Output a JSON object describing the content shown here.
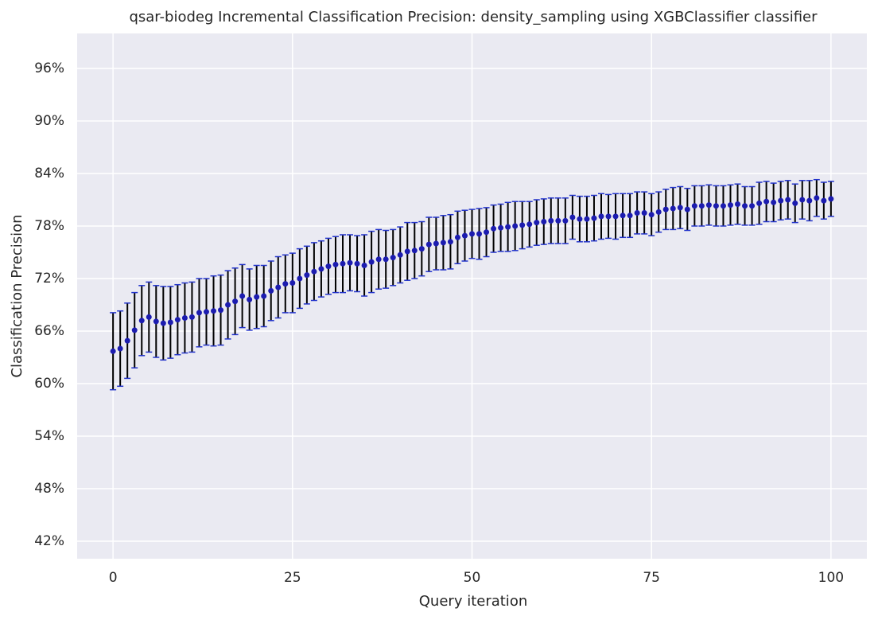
{
  "chart_data": {
    "type": "errorbar",
    "title": "qsar-biodeg Incremental Classification Precision: density_sampling using XGBClassifier classifier",
    "x_label": "Query iteration",
    "y_label": "Classification Precision",
    "x": [
      0,
      1,
      2,
      3,
      4,
      5,
      6,
      7,
      8,
      9,
      10,
      11,
      12,
      13,
      14,
      15,
      16,
      17,
      18,
      19,
      20,
      21,
      22,
      23,
      24,
      25,
      26,
      27,
      28,
      29,
      30,
      31,
      32,
      33,
      34,
      35,
      36,
      37,
      38,
      39,
      40,
      41,
      42,
      43,
      44,
      45,
      46,
      47,
      48,
      49,
      50,
      51,
      52,
      53,
      54,
      55,
      56,
      57,
      58,
      59,
      60,
      61,
      62,
      63,
      64,
      65,
      66,
      67,
      68,
      69,
      70,
      71,
      72,
      73,
      74,
      75,
      76,
      77,
      78,
      79,
      80,
      81,
      82,
      83,
      84,
      85,
      86,
      87,
      88,
      89,
      90,
      91,
      92,
      93,
      94,
      95,
      96,
      97,
      98,
      99,
      100
    ],
    "series": [
      {
        "color": "#1c1cb0",
        "error_color": "#000000",
        "cap_color": "#2233cc",
        "values": [
          63.7,
          64.0,
          64.9,
          66.1,
          67.2,
          67.6,
          67.1,
          66.9,
          67.0,
          67.3,
          67.5,
          67.6,
          68.1,
          68.2,
          68.3,
          68.4,
          69.0,
          69.4,
          70.0,
          69.6,
          69.9,
          70.0,
          70.6,
          71.0,
          71.4,
          71.5,
          72.0,
          72.4,
          72.8,
          73.1,
          73.4,
          73.6,
          73.7,
          73.8,
          73.7,
          73.5,
          73.9,
          74.2,
          74.2,
          74.4,
          74.7,
          75.1,
          75.2,
          75.4,
          75.9,
          76.0,
          76.1,
          76.2,
          76.7,
          76.9,
          77.1,
          77.1,
          77.3,
          77.7,
          77.8,
          77.9,
          78.0,
          78.1,
          78.2,
          78.4,
          78.5,
          78.6,
          78.6,
          78.6,
          79.0,
          78.8,
          78.8,
          78.9,
          79.1,
          79.1,
          79.1,
          79.2,
          79.2,
          79.5,
          79.5,
          79.3,
          79.6,
          79.9,
          80.0,
          80.1,
          79.9,
          80.3,
          80.3,
          80.4,
          80.3,
          80.3,
          80.4,
          80.5,
          80.3,
          80.3,
          80.6,
          80.8,
          80.7,
          80.9,
          81.0,
          80.6,
          81.0,
          80.9,
          81.2,
          80.9,
          81.1
        ],
        "errors": [
          4.4,
          4.3,
          4.3,
          4.3,
          4.0,
          4.0,
          4.1,
          4.2,
          4.1,
          4.0,
          4.0,
          4.0,
          3.9,
          3.8,
          4.0,
          4.0,
          3.9,
          3.8,
          3.6,
          3.5,
          3.6,
          3.5,
          3.4,
          3.5,
          3.3,
          3.4,
          3.4,
          3.3,
          3.3,
          3.2,
          3.2,
          3.2,
          3.3,
          3.2,
          3.2,
          3.5,
          3.5,
          3.4,
          3.3,
          3.2,
          3.2,
          3.3,
          3.2,
          3.1,
          3.1,
          3.0,
          3.1,
          3.1,
          3.0,
          2.9,
          2.8,
          2.9,
          2.8,
          2.7,
          2.7,
          2.8,
          2.8,
          2.7,
          2.6,
          2.6,
          2.6,
          2.6,
          2.6,
          2.6,
          2.5,
          2.6,
          2.6,
          2.6,
          2.6,
          2.5,
          2.6,
          2.5,
          2.5,
          2.4,
          2.4,
          2.4,
          2.3,
          2.3,
          2.4,
          2.4,
          2.4,
          2.3,
          2.3,
          2.3,
          2.3,
          2.3,
          2.3,
          2.3,
          2.2,
          2.2,
          2.4,
          2.3,
          2.2,
          2.2,
          2.2,
          2.2,
          2.2,
          2.3,
          2.1,
          2.1,
          2.0
        ]
      }
    ],
    "xlim": [
      -5,
      105
    ],
    "ylim": [
      40,
      100
    ],
    "xticks": [
      0,
      25,
      50,
      75,
      100
    ],
    "yticks": [
      {
        "value": 42,
        "label": "42%"
      },
      {
        "value": 48,
        "label": "48%"
      },
      {
        "value": 54,
        "label": "54%"
      },
      {
        "value": 60,
        "label": "60%"
      },
      {
        "value": 66,
        "label": "66%"
      },
      {
        "value": 72,
        "label": "72%"
      },
      {
        "value": 78,
        "label": "78%"
      },
      {
        "value": 84,
        "label": "84%"
      },
      {
        "value": 90,
        "label": "90%"
      },
      {
        "value": 96,
        "label": "96%"
      }
    ],
    "grid": true,
    "background": "#eaeaf2"
  }
}
